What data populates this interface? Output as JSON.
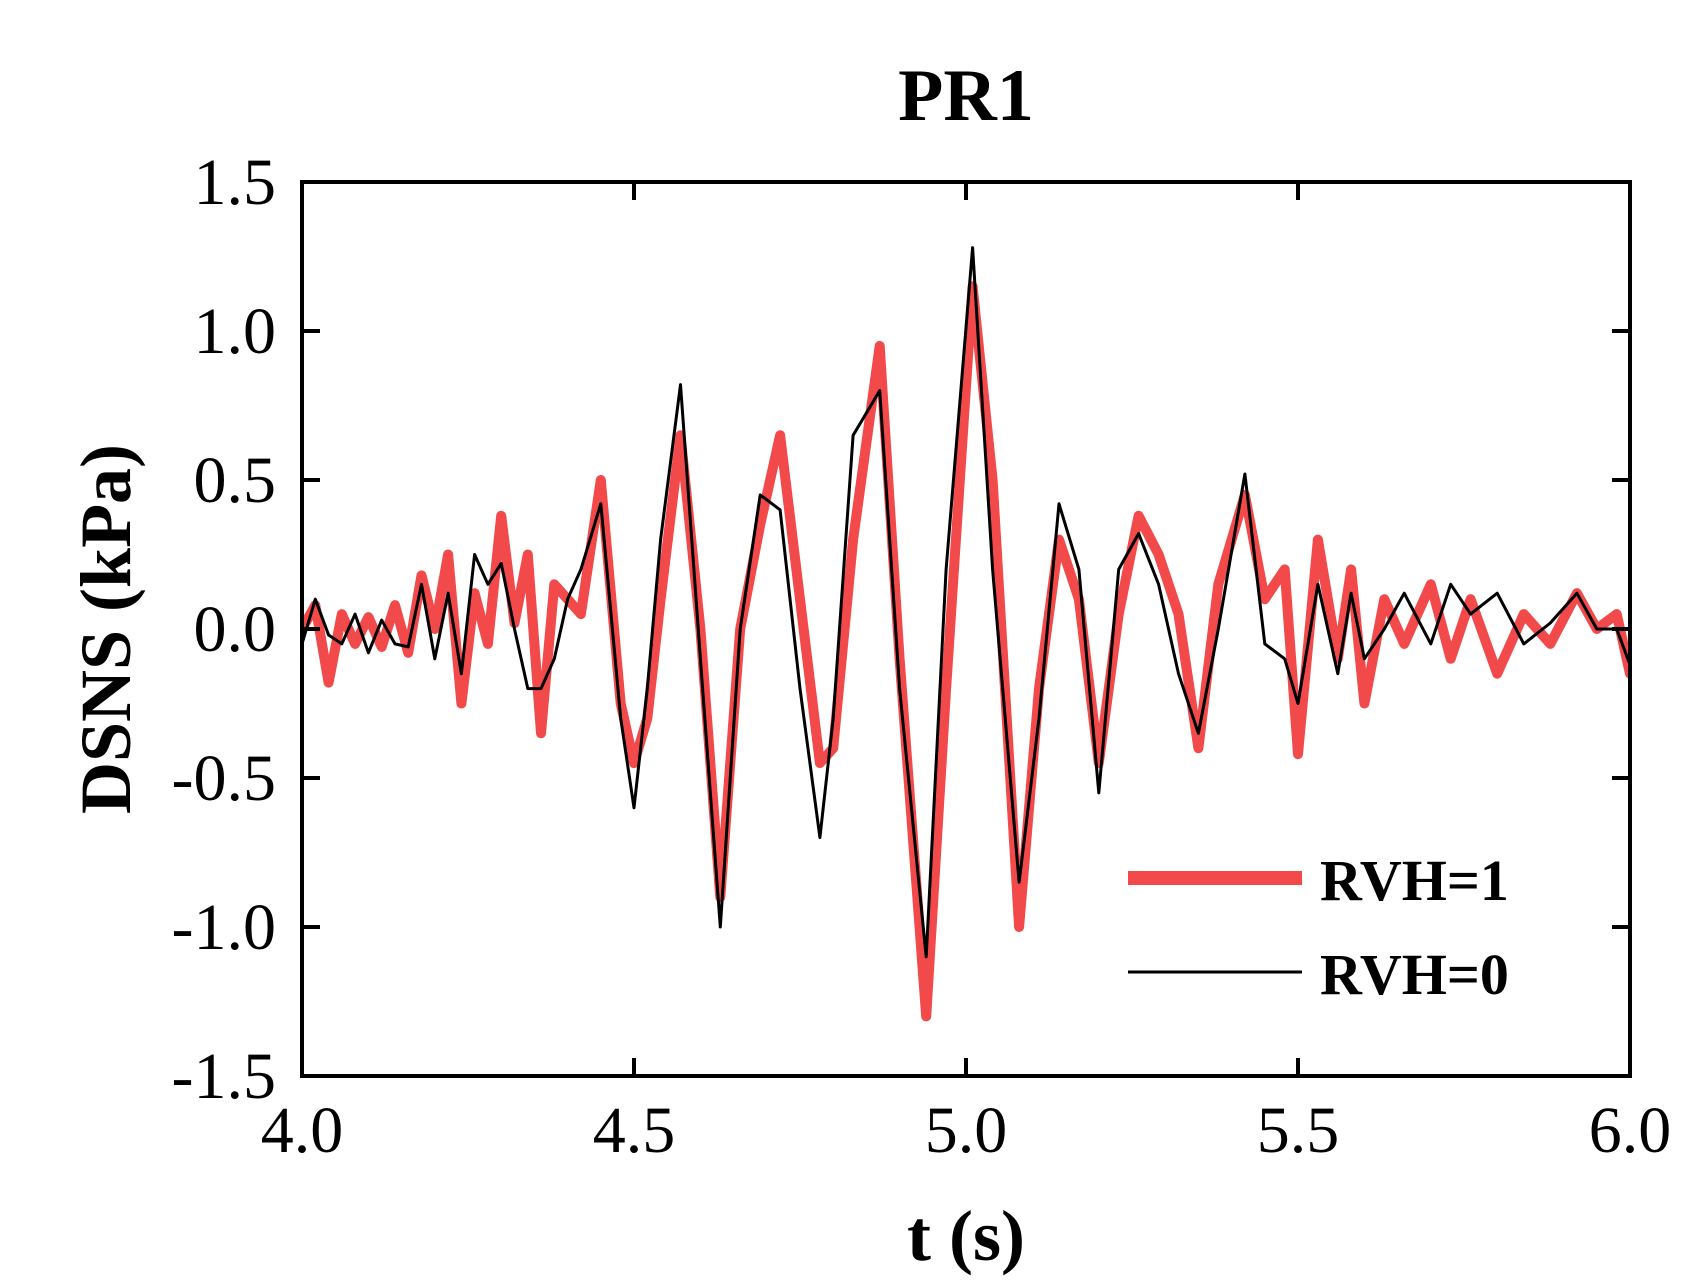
{
  "chart_data": {
    "type": "line",
    "title": "PR1",
    "xlabel": "t (s)",
    "ylabel": "DSNS (kPa)",
    "xlim": [
      4.0,
      6.0
    ],
    "ylim": [
      -1.5,
      1.5
    ],
    "xticks": [
      "4.0",
      "4.5",
      "5.0",
      "5.5",
      "6.0"
    ],
    "yticks": [
      "-1.5",
      "-1.0",
      "-0.5",
      "0.0",
      "0.5",
      "1.0",
      "1.5"
    ],
    "grid": false,
    "legend_position": "bottom-right",
    "series": [
      {
        "name": "RVH=1",
        "color": "#f24a4a",
        "style": "thick",
        "x": [
          4.0,
          4.02,
          4.04,
          4.06,
          4.08,
          4.1,
          4.12,
          4.14,
          4.16,
          4.18,
          4.2,
          4.22,
          4.24,
          4.26,
          4.28,
          4.3,
          4.32,
          4.34,
          4.36,
          4.38,
          4.4,
          4.42,
          4.45,
          4.48,
          4.5,
          4.52,
          4.54,
          4.57,
          4.6,
          4.63,
          4.66,
          4.69,
          4.72,
          4.75,
          4.78,
          4.8,
          4.83,
          4.87,
          4.9,
          4.94,
          4.97,
          5.01,
          5.04,
          5.08,
          5.11,
          5.14,
          5.17,
          5.2,
          5.23,
          5.26,
          5.29,
          5.32,
          5.35,
          5.38,
          5.42,
          5.45,
          5.48,
          5.5,
          5.53,
          5.56,
          5.58,
          5.6,
          5.63,
          5.66,
          5.7,
          5.73,
          5.76,
          5.8,
          5.84,
          5.88,
          5.92,
          5.95,
          5.98,
          6.0
        ],
        "y": [
          0.0,
          0.08,
          -0.18,
          0.05,
          -0.05,
          0.04,
          -0.06,
          0.08,
          -0.08,
          0.18,
          0.0,
          0.25,
          -0.25,
          0.12,
          -0.05,
          0.38,
          0.02,
          0.25,
          -0.35,
          0.15,
          0.1,
          0.05,
          0.5,
          -0.25,
          -0.45,
          -0.3,
          0.1,
          0.65,
          0.0,
          -0.9,
          0.0,
          0.35,
          0.65,
          0.1,
          -0.45,
          -0.4,
          0.3,
          0.95,
          -0.1,
          -1.3,
          -0.2,
          1.15,
          0.5,
          -1.0,
          -0.2,
          0.3,
          0.1,
          -0.45,
          0.05,
          0.38,
          0.25,
          0.05,
          -0.4,
          0.15,
          0.45,
          0.1,
          0.2,
          -0.42,
          0.3,
          -0.1,
          0.2,
          -0.25,
          0.1,
          -0.05,
          0.15,
          -0.1,
          0.1,
          -0.15,
          0.05,
          -0.05,
          0.12,
          0.0,
          0.05,
          -0.15
        ]
      },
      {
        "name": "RVH=0",
        "color": "#000000",
        "style": "thin",
        "x": [
          4.0,
          4.02,
          4.04,
          4.06,
          4.08,
          4.1,
          4.12,
          4.14,
          4.16,
          4.18,
          4.2,
          4.22,
          4.24,
          4.26,
          4.28,
          4.3,
          4.32,
          4.34,
          4.36,
          4.38,
          4.4,
          4.42,
          4.45,
          4.48,
          4.5,
          4.52,
          4.54,
          4.57,
          4.6,
          4.63,
          4.66,
          4.69,
          4.72,
          4.75,
          4.78,
          4.8,
          4.83,
          4.87,
          4.9,
          4.94,
          4.97,
          5.01,
          5.04,
          5.08,
          5.11,
          5.14,
          5.17,
          5.2,
          5.23,
          5.26,
          5.29,
          5.32,
          5.35,
          5.38,
          5.42,
          5.45,
          5.48,
          5.5,
          5.53,
          5.56,
          5.58,
          5.6,
          5.63,
          5.66,
          5.7,
          5.73,
          5.76,
          5.8,
          5.84,
          5.88,
          5.92,
          5.95,
          5.98,
          6.0
        ],
        "y": [
          -0.05,
          0.1,
          -0.02,
          -0.05,
          0.05,
          -0.08,
          0.03,
          -0.05,
          -0.06,
          0.15,
          -0.1,
          0.12,
          -0.15,
          0.25,
          0.15,
          0.22,
          0.0,
          -0.2,
          -0.2,
          -0.1,
          0.1,
          0.2,
          0.42,
          -0.3,
          -0.6,
          -0.2,
          0.3,
          0.82,
          -0.1,
          -1.0,
          0.0,
          0.45,
          0.4,
          -0.2,
          -0.7,
          -0.3,
          0.65,
          0.8,
          -0.2,
          -1.1,
          0.2,
          1.28,
          0.2,
          -0.85,
          -0.3,
          0.42,
          0.2,
          -0.55,
          0.2,
          0.32,
          0.15,
          -0.15,
          -0.35,
          0.0,
          0.52,
          -0.05,
          -0.1,
          -0.25,
          0.15,
          -0.15,
          0.12,
          -0.1,
          0.0,
          0.12,
          -0.05,
          0.15,
          0.05,
          0.12,
          -0.05,
          0.02,
          0.12,
          0.0,
          0.0,
          -0.12
        ]
      }
    ]
  }
}
